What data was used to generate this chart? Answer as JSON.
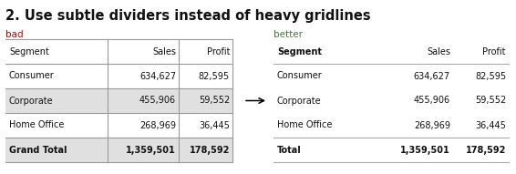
{
  "title": "2. Use subtle dividers instead of heavy gridlines",
  "title_fontsize": 10.5,
  "title_fontweight": "bold",
  "bad_label": "bad",
  "bad_color": "#cc0000",
  "better_label": "better",
  "better_color": "#4a7c3f",
  "columns": [
    "Segment",
    "Sales",
    "Profit"
  ],
  "rows": [
    [
      "Consumer",
      "634,627",
      "82,595"
    ],
    [
      "Corporate",
      "455,906",
      "59,552"
    ],
    [
      "Home Office",
      "268,969",
      "36,445"
    ]
  ],
  "bad_total_row": [
    "Grand Total",
    "1,359,501",
    "178,592"
  ],
  "better_total_row": [
    "Total",
    "1,359,501",
    "178,592"
  ],
  "stripe_color": "#e0e0e0",
  "grid_color": "#999999",
  "subtle_divider_color": "#aaaaaa",
  "label_fontsize": 7.5,
  "cell_fontsize": 7.0
}
